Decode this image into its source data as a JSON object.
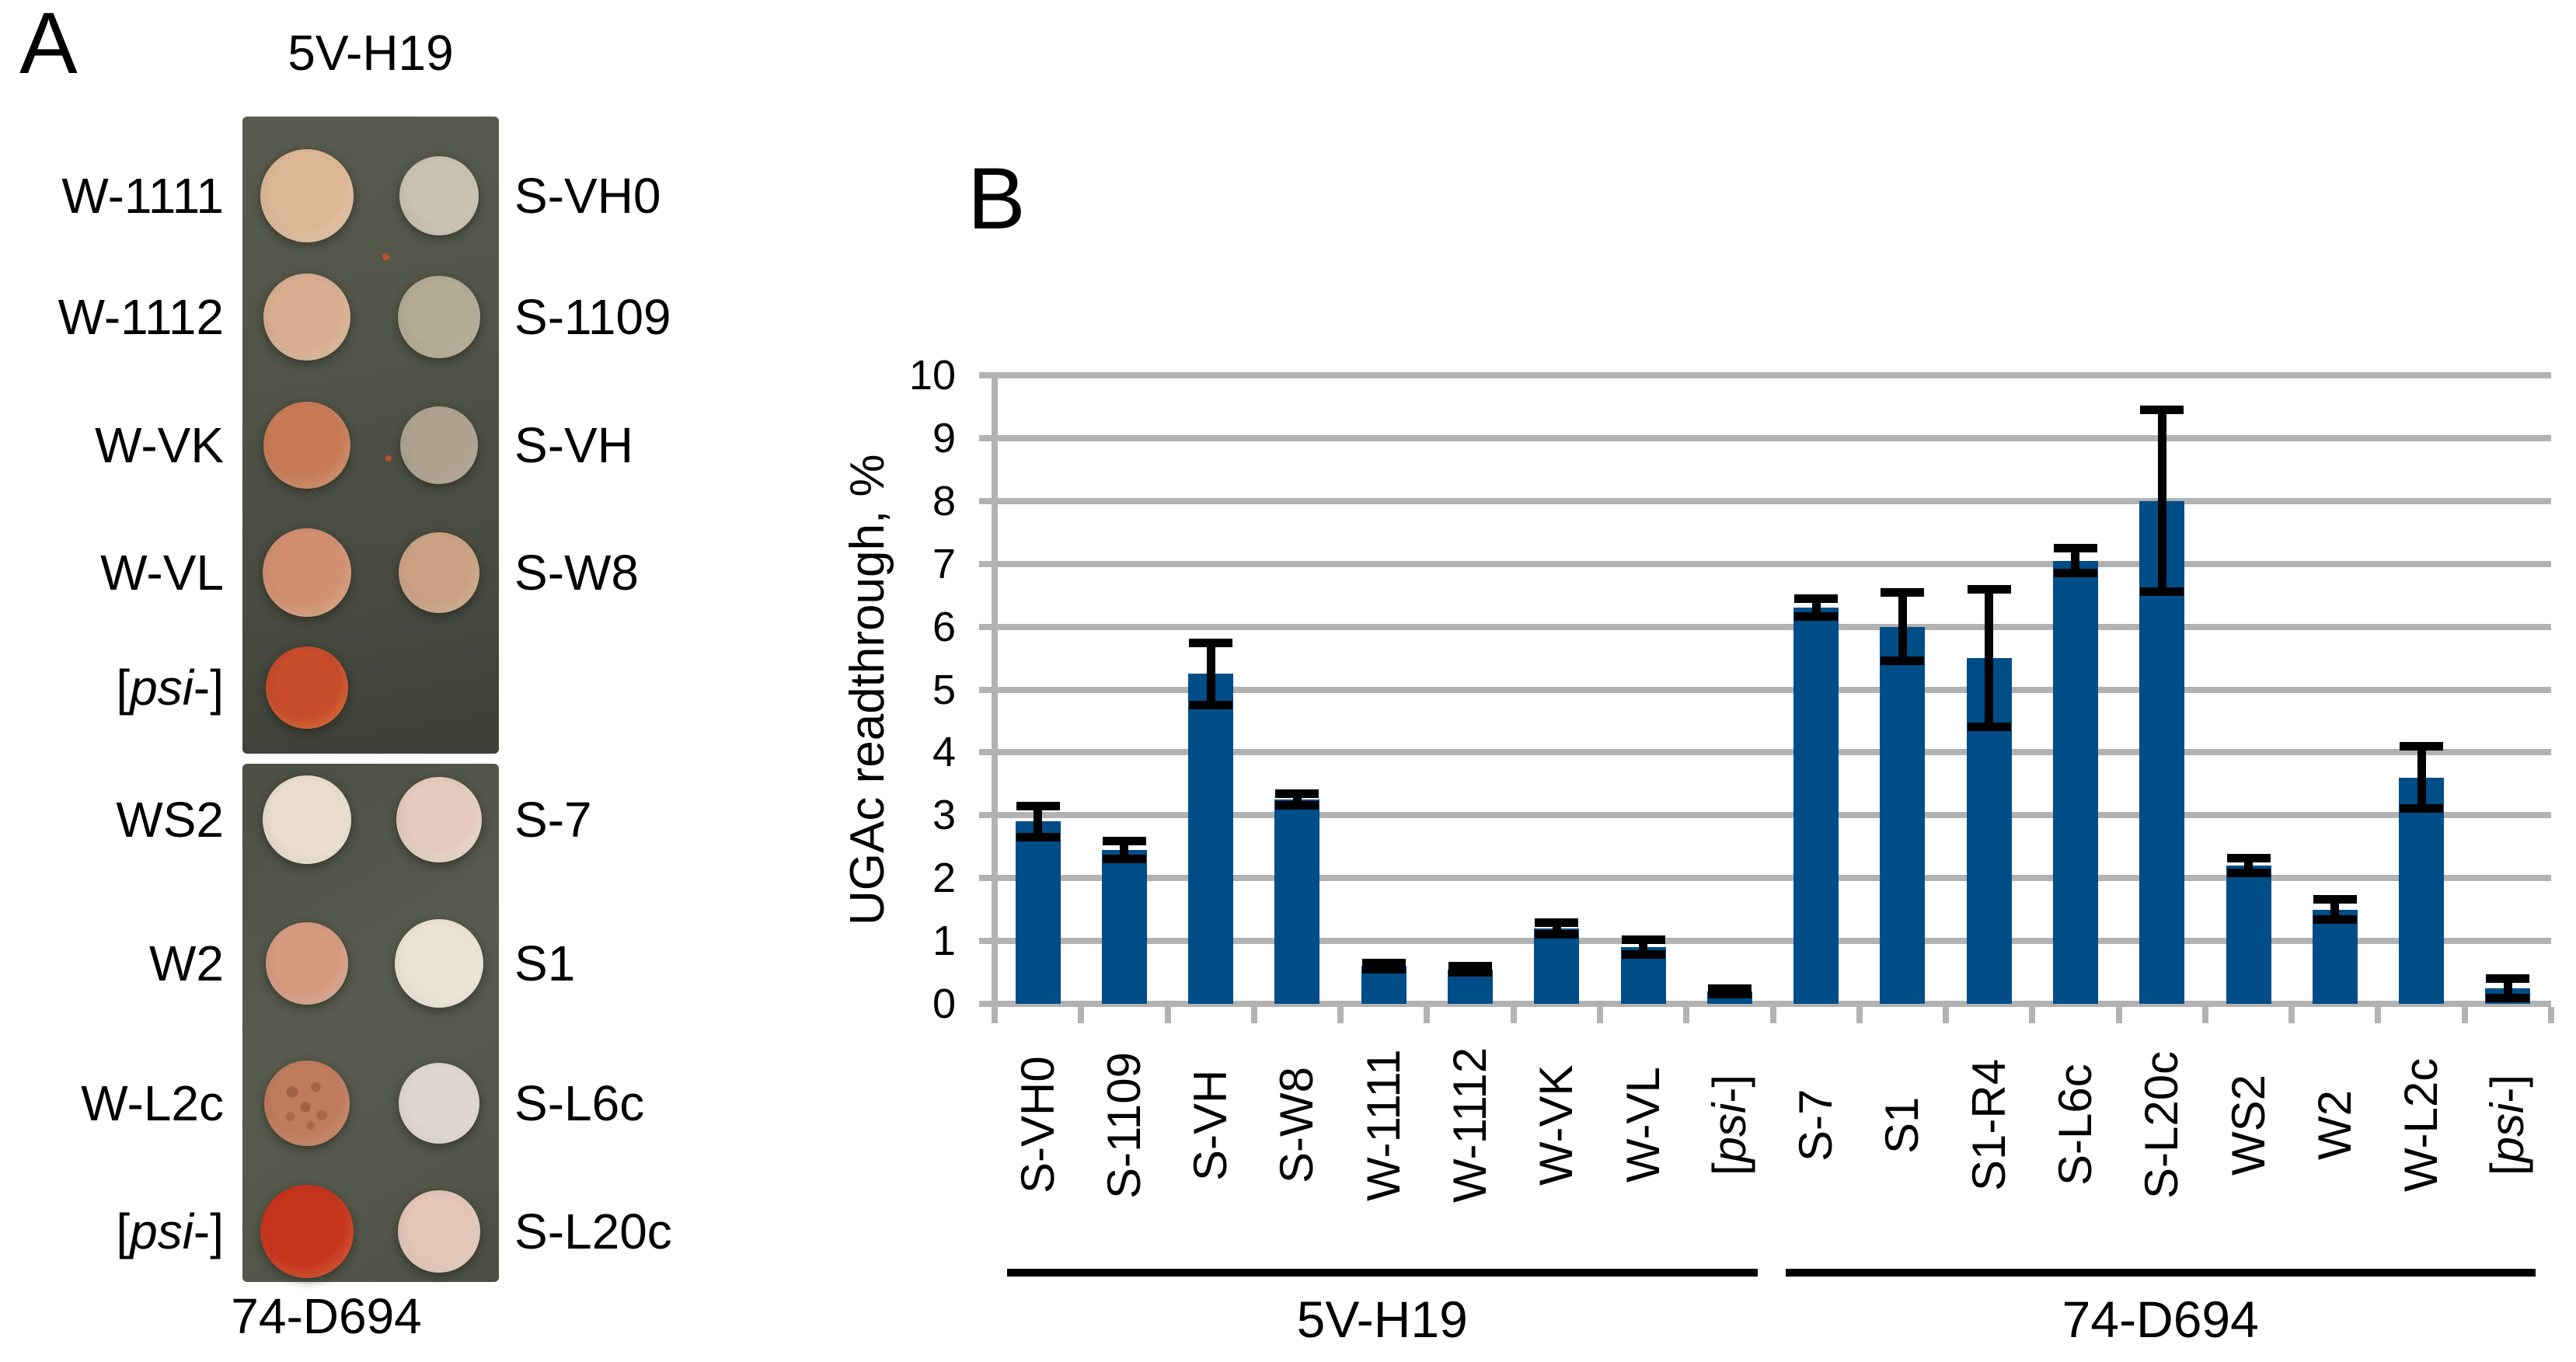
{
  "panel_a": {
    "label": "A",
    "top_plate_title": "5V-H19",
    "bottom_caption": "74-D694",
    "plates": [
      {
        "id": "top-plate",
        "rows": [
          {
            "left": {
              "label": "W-1111"
            },
            "right": {
              "label": "S-VH0"
            },
            "left_spot": {
              "fill": "#ddb695",
              "rim": "#efd2b6",
              "r": 60
            },
            "right_spot": {
              "fill": "#c9c2b2",
              "rim": "#d9d3c5",
              "r": 51
            }
          },
          {
            "left": {
              "label": "W-1112"
            },
            "right": {
              "label": "S-1109"
            },
            "left_spot": {
              "fill": "#d8ae90",
              "rim": "#ebc9ab",
              "r": 56
            },
            "right_spot": {
              "fill": "#b3ab93",
              "rim": "#c6bea8",
              "r": 53
            }
          },
          {
            "left": {
              "label": "W-VK"
            },
            "right": {
              "label": "S-VH"
            },
            "left_spot": {
              "fill": "#c87a57",
              "rim": "#e0a27d",
              "r": 56
            },
            "right_spot": {
              "fill": "#afa390",
              "rim": "#c2b7a4",
              "r": 50
            }
          },
          {
            "left": {
              "label": "W-VL"
            },
            "right": {
              "label": "S-W8"
            },
            "left_spot": {
              "fill": "#d18f70",
              "rim": "#e6b695",
              "r": 57
            },
            "right_spot": {
              "fill": "#cba184",
              "rim": "#e1bea0",
              "r": 52
            }
          },
          {
            "left": {
              "label": "[psi-]",
              "italic_part": "psi"
            },
            "right": null,
            "left_spot": {
              "fill": "#c64c2a",
              "rim": "#e8773f",
              "r": 53
            },
            "right_spot": null
          }
        ]
      },
      {
        "id": "bottom-plate",
        "rows": [
          {
            "left": {
              "label": "WS2"
            },
            "right": {
              "label": "S-7"
            },
            "left_spot": {
              "fill": "#e8dccd",
              "rim": "#f8f0e3",
              "r": 57
            },
            "right_spot": {
              "fill": "#e4cabc",
              "rim": "#f6ecdf",
              "r": 55
            }
          },
          {
            "left": {
              "label": "W2"
            },
            "right": {
              "label": "S1"
            },
            "left_spot": {
              "fill": "#d69a80",
              "rim": "#e8bba2",
              "r": 53
            },
            "right_spot": {
              "fill": "#eae3d4",
              "rim": "#faf6ed",
              "r": 57
            }
          },
          {
            "left": {
              "label": "W-L2c"
            },
            "right": {
              "label": "S-L6c"
            },
            "left_spot": {
              "fill": "#c07b5d",
              "rim": "#d59b79",
              "r": 55,
              "mottled": true
            },
            "right_spot": {
              "fill": "#ded7cf",
              "rim": "#f0eae3",
              "r": 52
            }
          },
          {
            "left": {
              "label": "[psi-]",
              "italic_part": "psi"
            },
            "right": {
              "label": "S-L20c"
            },
            "left_spot": {
              "fill": "#c5351e",
              "rim": "#e4603a",
              "r": 60
            },
            "right_spot": {
              "fill": "#e4c5b7",
              "rim": "#f3ddd0",
              "r": 53
            }
          }
        ]
      }
    ]
  },
  "panel_b": {
    "label": "B"
  },
  "chart_data": {
    "type": "bar",
    "title": "",
    "xlabel": "",
    "ylabel": "UGAc readthrough, %",
    "ylim": [
      0,
      10
    ],
    "yticks": [
      0,
      1,
      2,
      3,
      4,
      5,
      6,
      7,
      8,
      9,
      10
    ],
    "grid": true,
    "legend": false,
    "bar_color": "#004D87",
    "gridline_color": "#b2b2b2",
    "error_bar_color": "#000000",
    "categories": [
      "S-VH0",
      "S-1109",
      "S-VH",
      "S-W8",
      "W-1111",
      "W-1112",
      "W-VK",
      "W-VL",
      "[psi-]",
      "S-7",
      "S1",
      "S1-R4",
      "S-L6c",
      "S-L20c",
      "WS2",
      "W2",
      "W-L2c",
      "[psi-]"
    ],
    "values": [
      2.9,
      2.45,
      5.25,
      3.25,
      0.6,
      0.55,
      1.2,
      0.9,
      0.2,
      6.3,
      6.0,
      5.5,
      7.05,
      8.0,
      2.2,
      1.5,
      3.6,
      0.25
    ],
    "errors": [
      0.25,
      0.15,
      0.5,
      0.1,
      0.06,
      0.06,
      0.1,
      0.12,
      0.05,
      0.15,
      0.55,
      1.1,
      0.2,
      1.45,
      0.12,
      0.17,
      0.5,
      0.16
    ],
    "groups": [
      {
        "label": "5V-H19",
        "from": 0,
        "to": 8
      },
      {
        "label": "74-D694",
        "from": 9,
        "to": 17
      }
    ]
  }
}
